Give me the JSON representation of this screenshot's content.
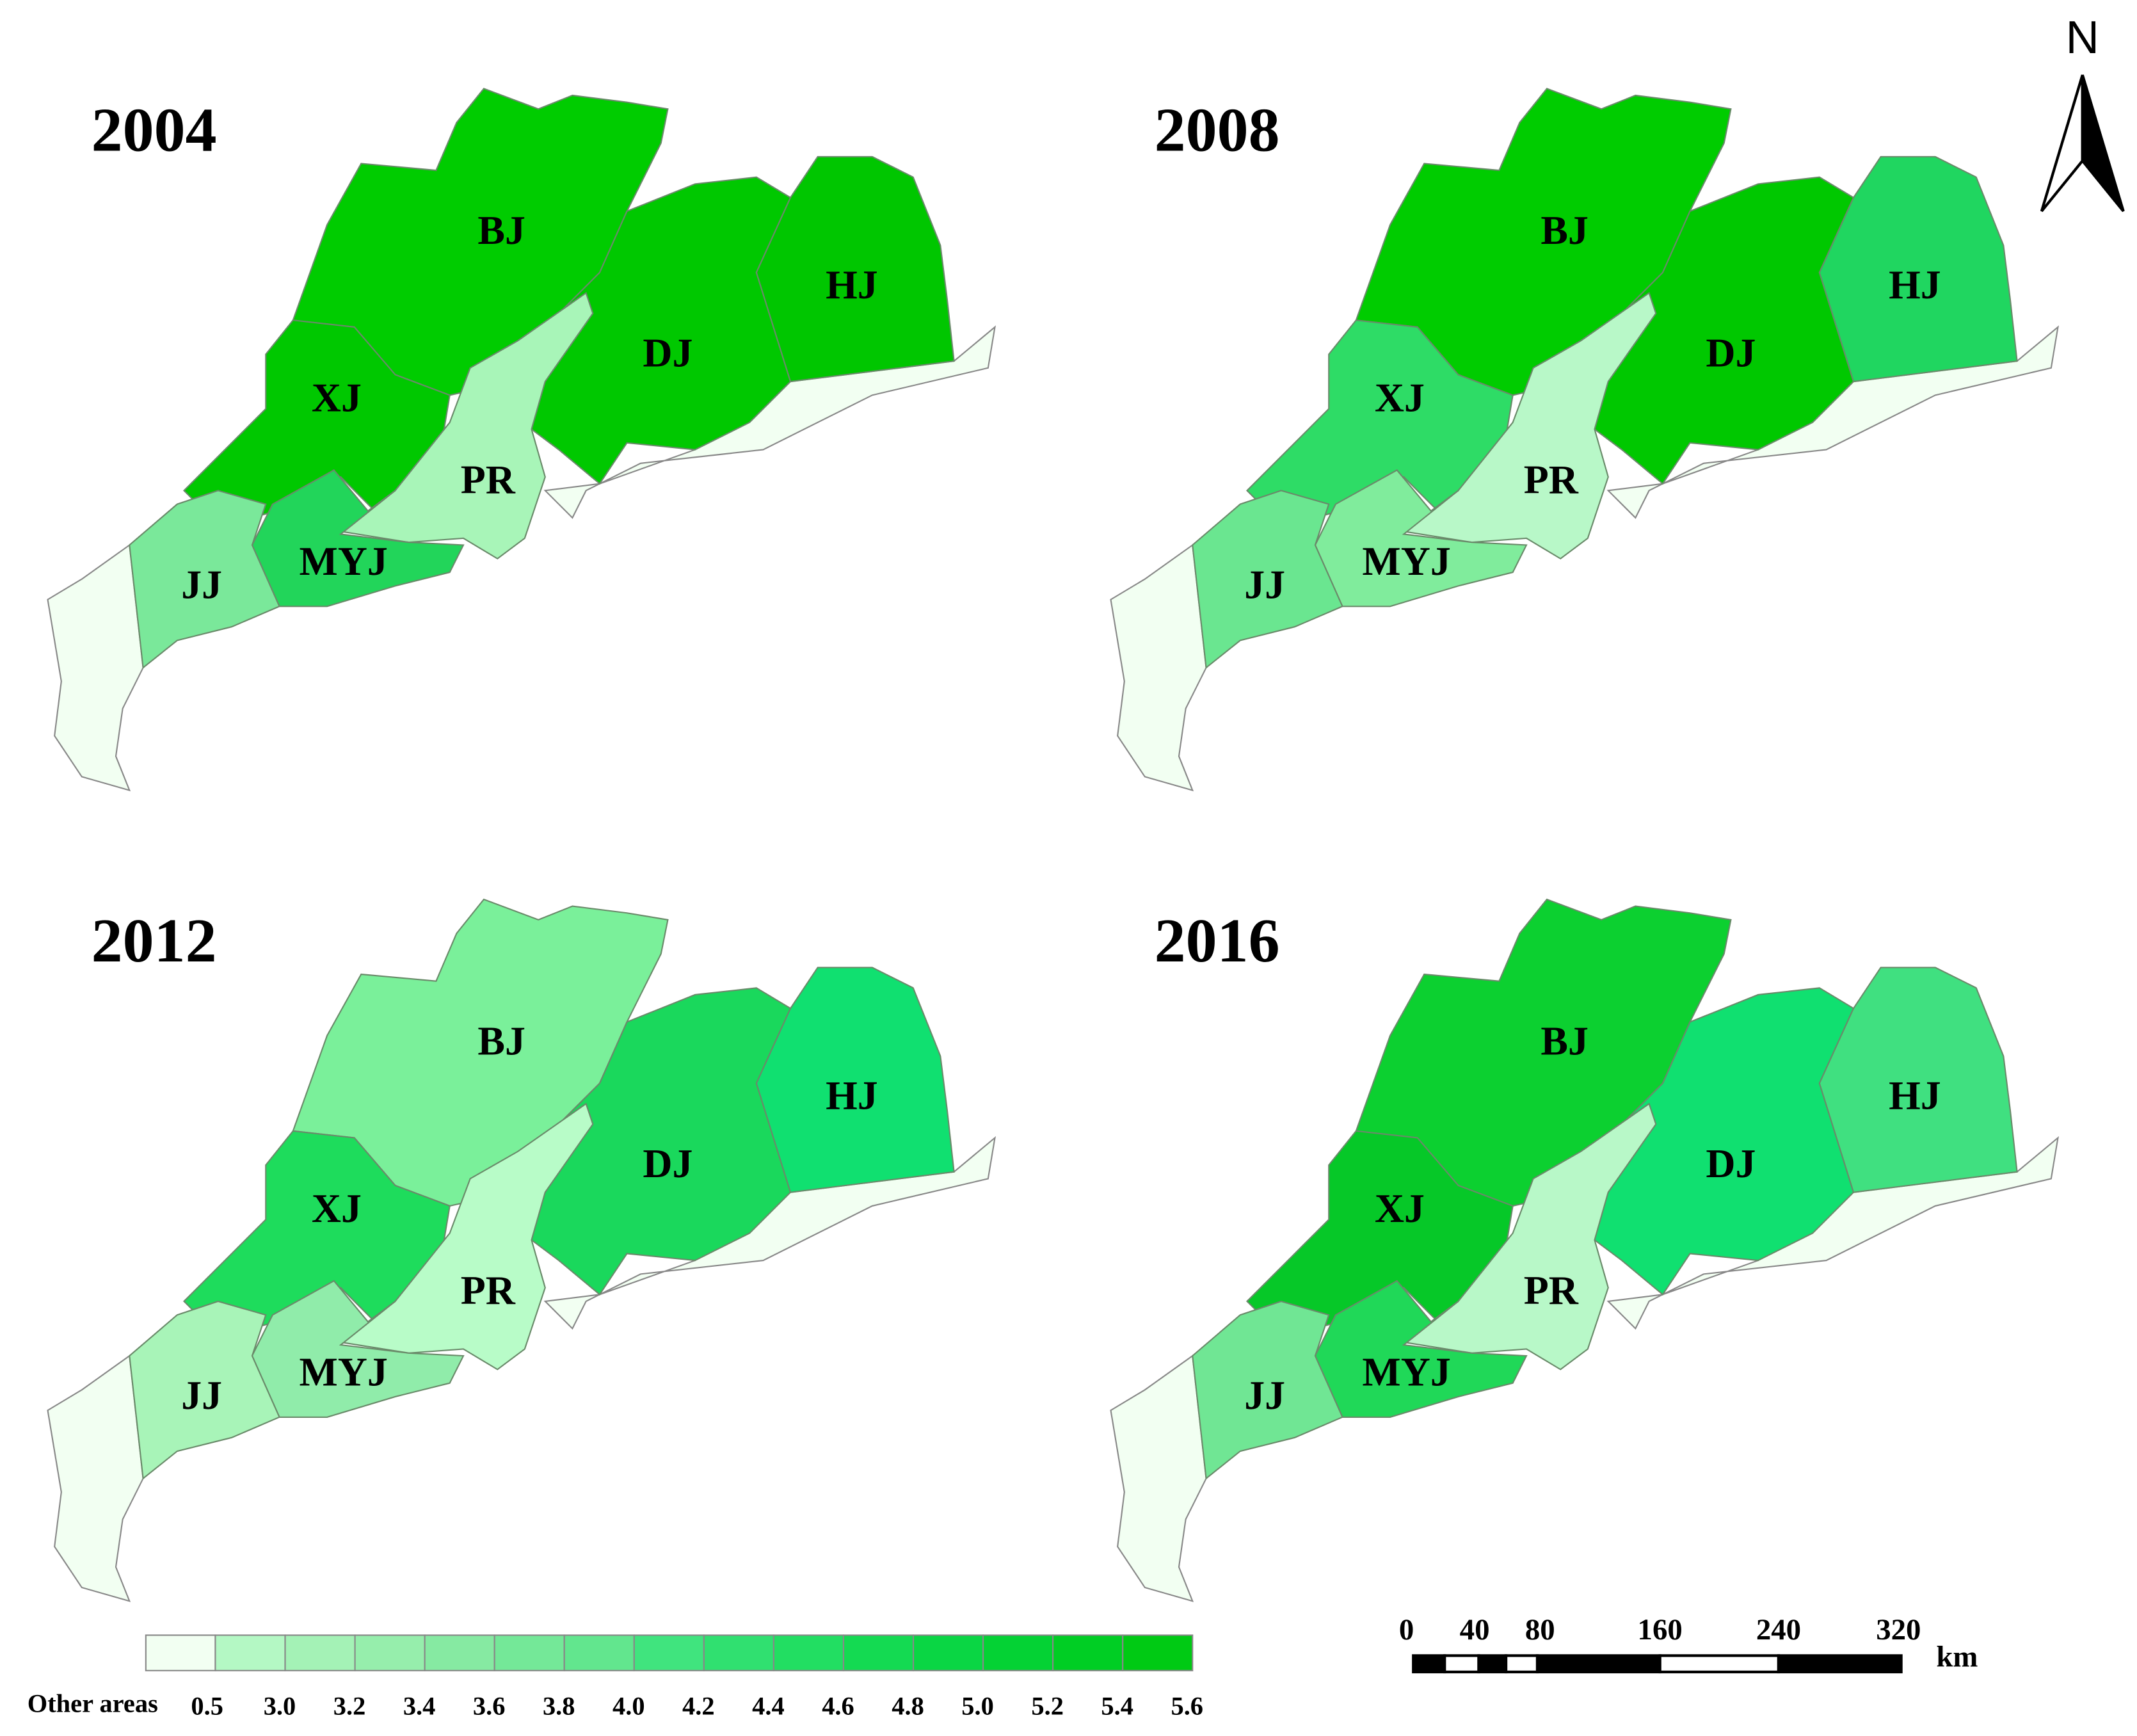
{
  "panels": [
    {
      "year": "2004",
      "regions": [
        {
          "label": "BJ",
          "color": "#00cc00"
        },
        {
          "label": "XJ",
          "color": "#00c800"
        },
        {
          "label": "DJ",
          "color": "#00c800"
        },
        {
          "label": "HJ",
          "color": "#00c600"
        },
        {
          "label": "PR",
          "color": "#a8f5b8"
        },
        {
          "label": "MYJ",
          "color": "#22d55a"
        },
        {
          "label": "JJ",
          "color": "#7ae89a"
        }
      ]
    },
    {
      "year": "2008",
      "regions": [
        {
          "label": "BJ",
          "color": "#00cc00"
        },
        {
          "label": "XJ",
          "color": "#2edc66"
        },
        {
          "label": "DJ",
          "color": "#00c800"
        },
        {
          "label": "HJ",
          "color": "#20d660"
        },
        {
          "label": "PR",
          "color": "#b8f8c8"
        },
        {
          "label": "MYJ",
          "color": "#80ec9c"
        },
        {
          "label": "JJ",
          "color": "#6ae690"
        }
      ]
    },
    {
      "year": "2012",
      "regions": [
        {
          "label": "BJ",
          "color": "#7af09a"
        },
        {
          "label": "XJ",
          "color": "#1edc5c"
        },
        {
          "label": "DJ",
          "color": "#1ad85c"
        },
        {
          "label": "HJ",
          "color": "#10e070"
        },
        {
          "label": "PR",
          "color": "#b8fcc8"
        },
        {
          "label": "MYJ",
          "color": "#90ecaa"
        },
        {
          "label": "JJ",
          "color": "#a8f4b8"
        }
      ]
    },
    {
      "year": "2016",
      "regions": [
        {
          "label": "BJ",
          "color": "#0cd030"
        },
        {
          "label": "XJ",
          "color": "#06c828"
        },
        {
          "label": "DJ",
          "color": "#10e070"
        },
        {
          "label": "HJ",
          "color": "#40e080"
        },
        {
          "label": "PR",
          "color": "#b8f8c8"
        },
        {
          "label": "MYJ",
          "color": "#20d858"
        },
        {
          "label": "JJ",
          "color": "#70e694"
        }
      ]
    }
  ],
  "other_color": "#f2fff2",
  "legend": {
    "other_label": "Other areas",
    "breaks": [
      "0.5",
      "3.0",
      "3.2",
      "3.4",
      "3.6",
      "3.8",
      "4.0",
      "4.2",
      "4.4",
      "4.6",
      "4.8",
      "5.0",
      "5.2",
      "5.4",
      "5.6"
    ],
    "colors": [
      "#b4f8c4",
      "#a4f2b6",
      "#96eeac",
      "#86eaa2",
      "#74e898",
      "#62e68e",
      "#40e47e",
      "#30e070",
      "#22de62",
      "#14da52",
      "#0ad644",
      "#04d234",
      "#00ce24",
      "#00ca14"
    ]
  },
  "scale_bar": {
    "labels": [
      "0",
      "40",
      "80",
      "160",
      "240",
      "320"
    ],
    "unit": "km"
  },
  "north": "N"
}
